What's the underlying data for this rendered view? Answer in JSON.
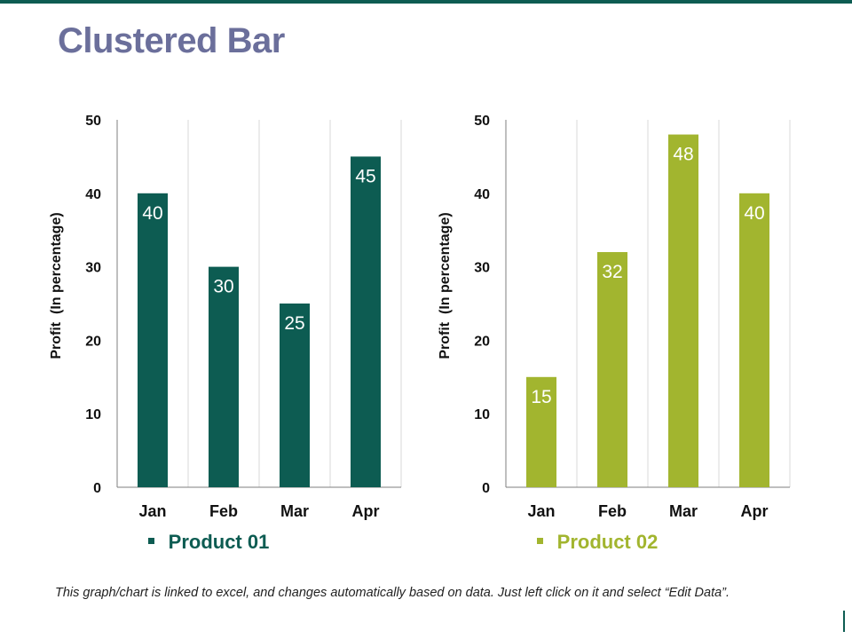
{
  "slide": {
    "title": "Clustered Bar",
    "footnote": "This graph/chart is linked to excel, and changes automatically based on data. Just left click on it and select “Edit Data”.",
    "accent_color": "#0d5c52",
    "title_color": "#6b6f9b"
  },
  "chart_data": [
    {
      "type": "bar",
      "categories": [
        "Jan",
        "Feb",
        "Mar",
        "Apr"
      ],
      "values": [
        40,
        30,
        25,
        45
      ],
      "ylabel": "Profit  (In percentage)",
      "xlabel": "",
      "ylim": [
        0,
        50
      ],
      "yticks": [
        0,
        10,
        20,
        30,
        40,
        50
      ],
      "grid": true,
      "legend": "Product 01",
      "legend_position": "bottom",
      "color": "#0d5c52"
    },
    {
      "type": "bar",
      "categories": [
        "Jan",
        "Feb",
        "Mar",
        "Apr"
      ],
      "values": [
        15,
        32,
        48,
        40
      ],
      "ylabel": "Profit  (In percentage)",
      "xlabel": "",
      "ylim": [
        0,
        50
      ],
      "yticks": [
        0,
        10,
        20,
        30,
        40,
        50
      ],
      "grid": true,
      "legend": "Product 02",
      "legend_position": "bottom",
      "color": "#a2b52f"
    }
  ]
}
